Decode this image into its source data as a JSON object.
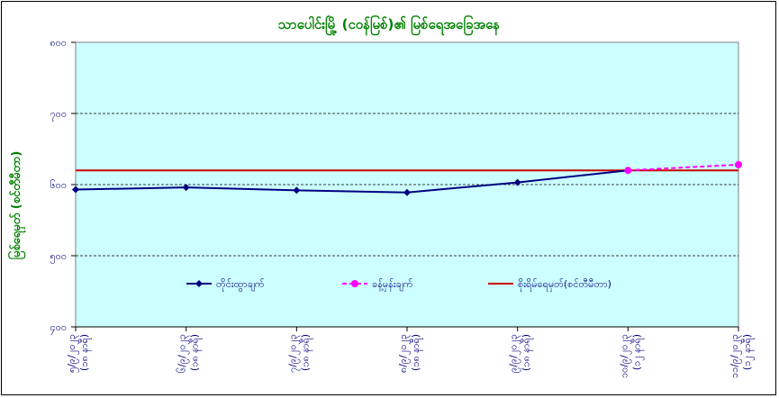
{
  "colors": {
    "plot_bg": "#ccffff",
    "observed": "#000080",
    "forecast": "#ff00ff",
    "danger": "#cc0000",
    "title": "#008000",
    "ticks": "#000080"
  },
  "chart_data": {
    "type": "line",
    "title": "သာပေါင်းမြို့ (ငဝန်မြစ်)၏ မြစ်ရေအခြေအနေ",
    "xlabel": "",
    "ylabel": "မြစ်ရေမှတ် (စင်တီမီတာ)",
    "ylim": [
      400,
      800
    ],
    "yticks": [
      400,
      500,
      600,
      700,
      800
    ],
    "ytick_labels": [
      "၄၀၀",
      "၅၀၀",
      "၆၀၀",
      "၇၀၀",
      "၈၀၀"
    ],
    "grid": "horizontal dashed",
    "legend_position": "middle-center",
    "categories": [
      "၅/၉/၂၀၂၃ (၁၈ နာရီ)",
      "၆/၉/၂၀၂၃ (၁၈ နာရီ)",
      "၇/၉/၂၀၂၃ (၁၈ နာရီ)",
      "၈/၉/၂၀၂၃ (၁၈ နာရီ)",
      "၉/၉/၂၀၂၃ (၁၈ နာရီ)",
      "၁၀/၉/၂၀၂၃ (၁၂ နာရီ)",
      "၁၁/၉/၂၀၂၃ (၁၂ နာရီ)"
    ],
    "series": [
      {
        "name": "တိုင်းထွာချက်",
        "values": [
          593,
          596,
          592,
          589,
          603,
          620,
          null
        ]
      },
      {
        "name": "ခန့်မှန်းချက်",
        "values": [
          null,
          null,
          null,
          null,
          null,
          620,
          628
        ]
      },
      {
        "name": "စိုးရိမ်ရေမှတ်(စင်တီမီတာ)",
        "values": [
          620,
          620,
          620,
          620,
          620,
          620,
          620
        ]
      }
    ]
  }
}
